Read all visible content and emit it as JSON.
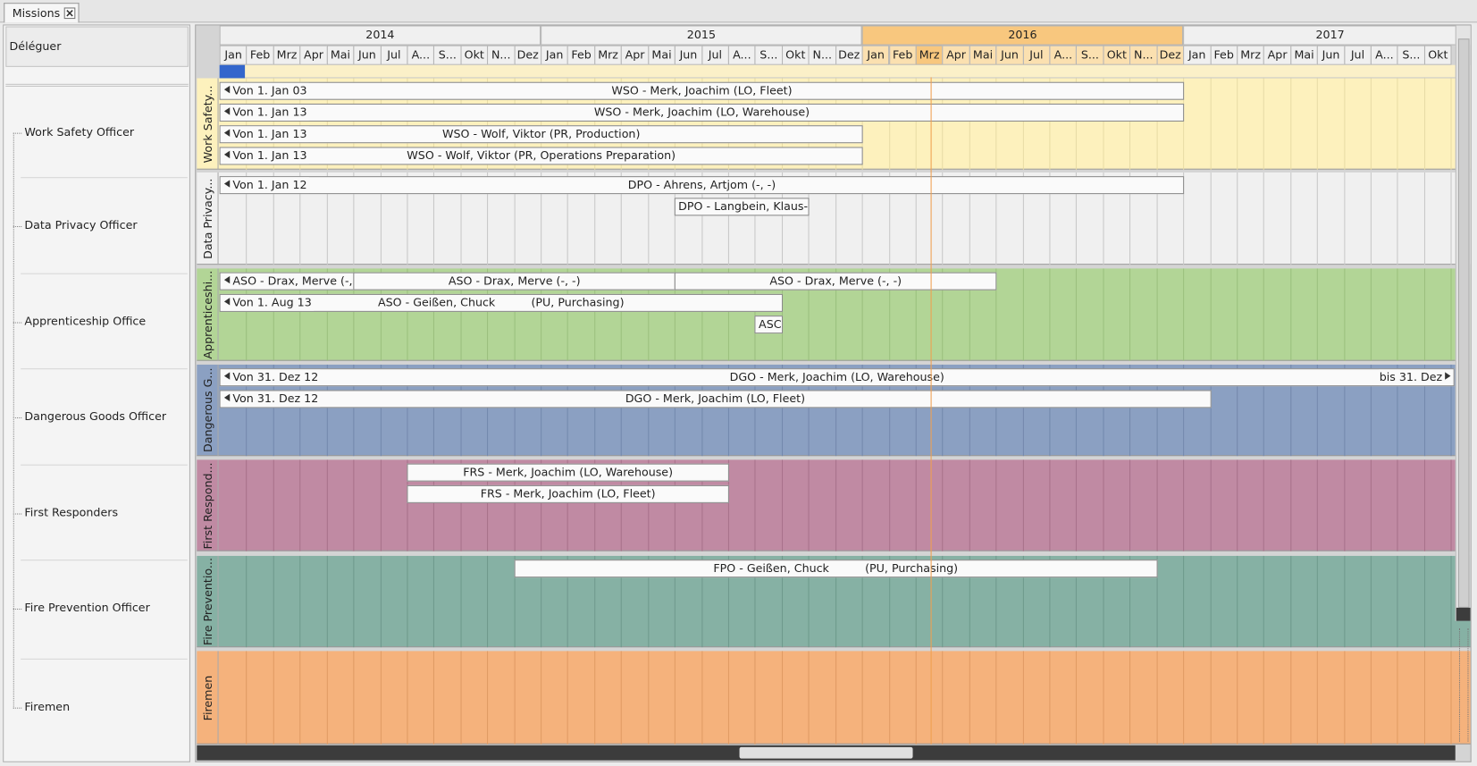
{
  "tab": {
    "title": "Missions"
  },
  "sidebar": {
    "header": "Déléguer",
    "items": [
      "Work Safety Officer",
      "Data Privacy Officer",
      "Apprenticeship Office",
      "Dangerous Goods Officer",
      "First Responders",
      "Fire Prevention Officer",
      "Firemen"
    ]
  },
  "timeline": {
    "years": [
      "2014",
      "2015",
      "2016",
      "2017"
    ],
    "months": [
      "Jan",
      "Feb",
      "Mrz",
      "Apr",
      "Mai",
      "Jun",
      "Jul",
      "A...",
      "S...",
      "Okt",
      "N...",
      "Dez",
      "Jan",
      "Feb",
      "Mrz",
      "Apr",
      "Mai",
      "Jun",
      "Jul",
      "A...",
      "S...",
      "Okt",
      "N...",
      "Dez",
      "Jan",
      "Feb",
      "Mrz",
      "Apr",
      "Mai",
      "Jun",
      "Jul",
      "A...",
      "S...",
      "Okt",
      "N...",
      "Dez",
      "Jan",
      "Feb",
      "Mrz",
      "Apr",
      "Mai",
      "Jun",
      "Jul",
      "A...",
      "S...",
      "Okt"
    ],
    "lanes": [
      {
        "label": "Work Safety...",
        "bars": [
          {
            "from": "Von 1. Jan 03",
            "text": "WSO - Merk, Joachim (LO, Fleet)"
          },
          {
            "from": "Von 1. Jan 13",
            "text": "WSO - Merk, Joachim (LO, Warehouse)"
          },
          {
            "from": "Von 1. Jan 13",
            "text": "WSO - Wolf, Viktor (PR, Production)"
          },
          {
            "from": "Von 1. Jan 13",
            "text": "WSO - Wolf, Viktor (PR, Operations Preparation)"
          }
        ]
      },
      {
        "label": "Data Privacy...",
        "bars": [
          {
            "from": "Von 1. Jan 12",
            "text": "DPO - Ahrens, Artjom (-, -)"
          },
          {
            "text": "DPO - Langbein, Klaus-Pe"
          }
        ]
      },
      {
        "label": "Apprenticeshi...",
        "bars": [
          {
            "from": "ASO - Drax, Merve (-,"
          },
          {
            "text": "ASO - Drax, Merve (-, -)"
          },
          {
            "text": "ASO - Drax, Merve (-, -)"
          },
          {
            "from": "Von 1. Aug 13",
            "text": "ASO - Geißen, Chuck          (PU, Purchasing)"
          },
          {
            "text": "ASC"
          }
        ]
      },
      {
        "label": "Dangerous G...",
        "bars": [
          {
            "from": "Von 31. Dez 12",
            "text": "DGO - Merk, Joachim (LO, Warehouse)",
            "to": "bis 31. Dez"
          },
          {
            "from": "Von 31. Dez 12",
            "text": "DGO - Merk, Joachim (LO, Fleet)"
          }
        ]
      },
      {
        "label": "First Respond...",
        "bars": [
          {
            "text": "FRS - Merk, Joachim (LO, Warehouse)"
          },
          {
            "text": "FRS - Merk, Joachim (LO, Fleet)"
          }
        ]
      },
      {
        "label": "Fire Preventio...",
        "bars": [
          {
            "text": "FPO - Geißen, Chuck          (PU, Purchasing)"
          }
        ]
      },
      {
        "label": "Firemen",
        "bars": []
      }
    ]
  }
}
